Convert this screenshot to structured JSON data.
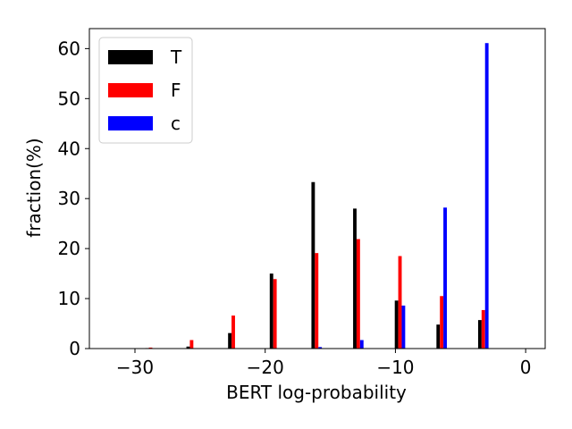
{
  "chart_data": {
    "type": "bar",
    "xlabel": "BERT log-probability",
    "ylabel": "fraction(%)",
    "xlim": [
      -33.5,
      1.5
    ],
    "ylim": [
      0,
      64
    ],
    "xticks": [
      -30,
      -20,
      -10,
      0
    ],
    "xtick_labels": [
      "−30",
      "−20",
      "−10",
      "0"
    ],
    "yticks": [
      0,
      10,
      20,
      30,
      40,
      50,
      60
    ],
    "ytick_labels": [
      "0",
      "10",
      "20",
      "30",
      "40",
      "50",
      "60"
    ],
    "bin_centers": [
      -28.8,
      -25.65,
      -22.45,
      -19.25,
      -16.05,
      -12.85,
      -9.65,
      -6.45,
      -3.25
    ],
    "bar_width": 0.8,
    "grid": false,
    "legend_position": "top-left",
    "series": [
      {
        "name": "T",
        "color": "#000000",
        "values": [
          0.1,
          0.4,
          3.1,
          15.0,
          33.3,
          28.0,
          9.6,
          4.8,
          5.7
        ]
      },
      {
        "name": "F",
        "color": "#ff0000",
        "values": [
          0.2,
          1.7,
          6.6,
          13.9,
          19.1,
          21.9,
          18.5,
          10.5,
          7.7
        ]
      },
      {
        "name": "c",
        "color": "#0000ff",
        "values": [
          0.0,
          0.0,
          0.0,
          0.0,
          0.3,
          1.7,
          8.6,
          28.2,
          61.1
        ]
      }
    ]
  }
}
